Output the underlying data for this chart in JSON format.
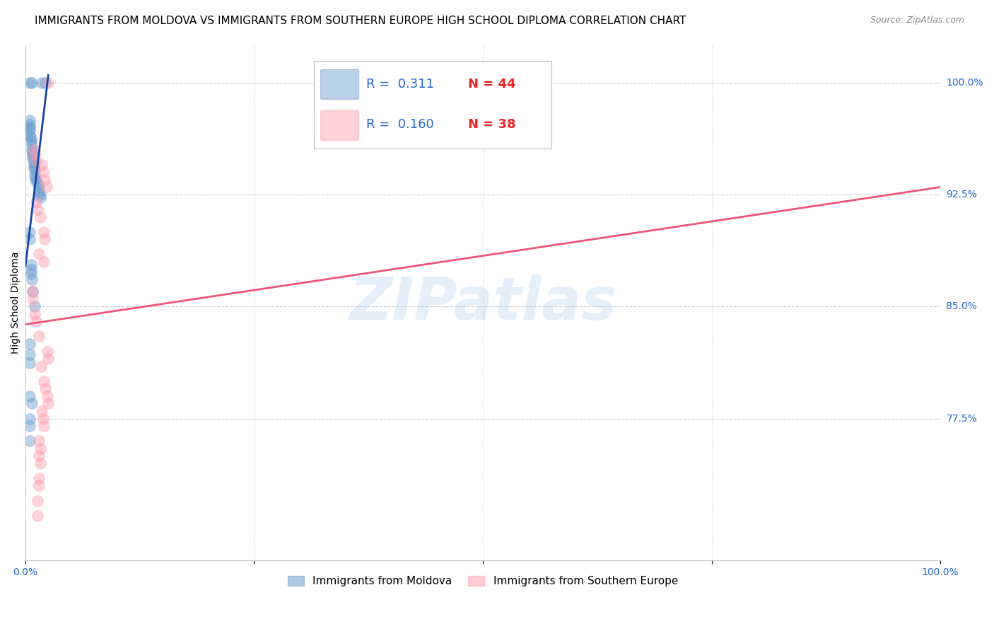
{
  "title": "IMMIGRANTS FROM MOLDOVA VS IMMIGRANTS FROM SOUTHERN EUROPE HIGH SCHOOL DIPLOMA CORRELATION CHART",
  "source": "Source: ZipAtlas.com",
  "ylabel": "High School Diploma",
  "xlim": [
    0.0,
    100.0
  ],
  "ylim": [
    0.68,
    1.025
  ],
  "y_tick_values": [
    1.0,
    0.925,
    0.85,
    0.775
  ],
  "y_tick_labels": [
    "100.0%",
    "92.5%",
    "85.0%",
    "77.5%"
  ],
  "x_tick_labels": [
    "0.0%",
    "100.0%"
  ],
  "legend_blue_r": "0.311",
  "legend_blue_n": "44",
  "legend_pink_r": "0.160",
  "legend_pink_n": "38",
  "legend_label_blue": "Immigrants from Moldova",
  "legend_label_pink": "Immigrants from Southern Europe",
  "blue_color": "#6699CC",
  "pink_color": "#FF99AA",
  "blue_line_color": "#1144AA",
  "pink_line_color": "#EE5577",
  "watermark": "ZIPatlas",
  "blue_scatter_x": [
    0.5,
    0.7,
    1.8,
    2.2,
    0.5,
    0.5,
    0.5,
    0.5,
    0.5,
    0.6,
    0.6,
    0.7,
    0.7,
    0.8,
    0.8,
    0.8,
    0.9,
    0.9,
    0.9,
    1.0,
    1.0,
    1.1,
    1.2,
    1.4,
    1.5,
    1.5,
    1.6,
    1.6,
    0.5,
    0.5,
    0.6,
    0.6,
    0.6,
    0.7,
    0.8,
    1.0,
    0.5,
    0.5,
    0.5,
    0.5,
    0.7,
    0.5,
    0.5,
    0.5
  ],
  "blue_scatter_y": [
    1.0,
    1.0,
    1.0,
    1.0,
    0.975,
    0.972,
    0.97,
    0.968,
    0.965,
    0.963,
    0.961,
    0.958,
    0.955,
    0.953,
    0.951,
    0.949,
    0.947,
    0.945,
    0.943,
    0.941,
    0.938,
    0.936,
    0.934,
    0.932,
    0.93,
    0.927,
    0.925,
    0.923,
    0.9,
    0.895,
    0.878,
    0.875,
    0.872,
    0.868,
    0.86,
    0.85,
    0.825,
    0.818,
    0.812,
    0.79,
    0.785,
    0.775,
    0.77,
    0.76
  ],
  "pink_scatter_x": [
    2.5,
    1.0,
    1.0,
    1.2,
    1.8,
    1.9,
    2.1,
    2.3,
    1.2,
    1.3,
    1.6,
    2.0,
    2.1,
    1.5,
    2.0,
    0.8,
    0.8,
    1.0,
    1.2,
    1.5,
    2.4,
    2.5,
    1.7,
    2.0,
    2.2,
    2.4,
    2.5,
    1.8,
    1.9,
    2.0,
    1.5,
    1.6,
    1.5,
    1.6,
    1.5,
    1.5,
    1.3,
    1.3
  ],
  "pink_scatter_y": [
    1.0,
    0.955,
    0.952,
    0.948,
    0.945,
    0.94,
    0.935,
    0.93,
    0.92,
    0.915,
    0.91,
    0.9,
    0.895,
    0.885,
    0.88,
    0.86,
    0.855,
    0.845,
    0.84,
    0.83,
    0.82,
    0.815,
    0.81,
    0.8,
    0.795,
    0.79,
    0.785,
    0.78,
    0.775,
    0.77,
    0.76,
    0.755,
    0.75,
    0.745,
    0.735,
    0.73,
    0.72,
    0.71
  ],
  "blue_trendline_x": [
    0.0,
    2.5
  ],
  "blue_trendline_y": [
    0.877,
    1.005
  ],
  "pink_trendline_x": [
    0.0,
    100.0
  ],
  "pink_trendline_y": [
    0.838,
    0.93
  ],
  "grid_color": "#CCCCCC",
  "background_color": "#FFFFFF",
  "title_fontsize": 11,
  "axis_label_fontsize": 10,
  "tick_fontsize": 10
}
